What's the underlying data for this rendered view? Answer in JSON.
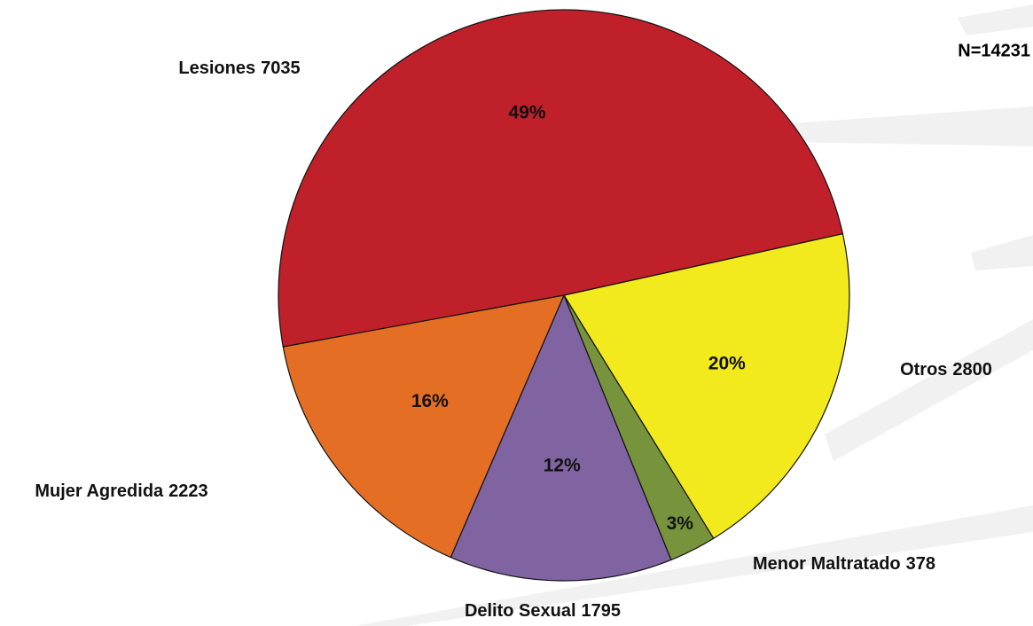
{
  "chart_data": {
    "type": "pie",
    "total_label": "N=14231",
    "categories": [
      "Lesiones",
      "Otros",
      "Menor Maltratado",
      "Delito Sexual",
      "Mujer Agredida"
    ],
    "values": [
      7035,
      2800,
      378,
      1795,
      2223
    ],
    "percent_labels": [
      "49%",
      "20%",
      "3%",
      "12%",
      "16%"
    ],
    "colors": [
      "#c0202a",
      "#f2ea1c",
      "#77933c",
      "#8064a2",
      "#e46f24"
    ]
  }
}
